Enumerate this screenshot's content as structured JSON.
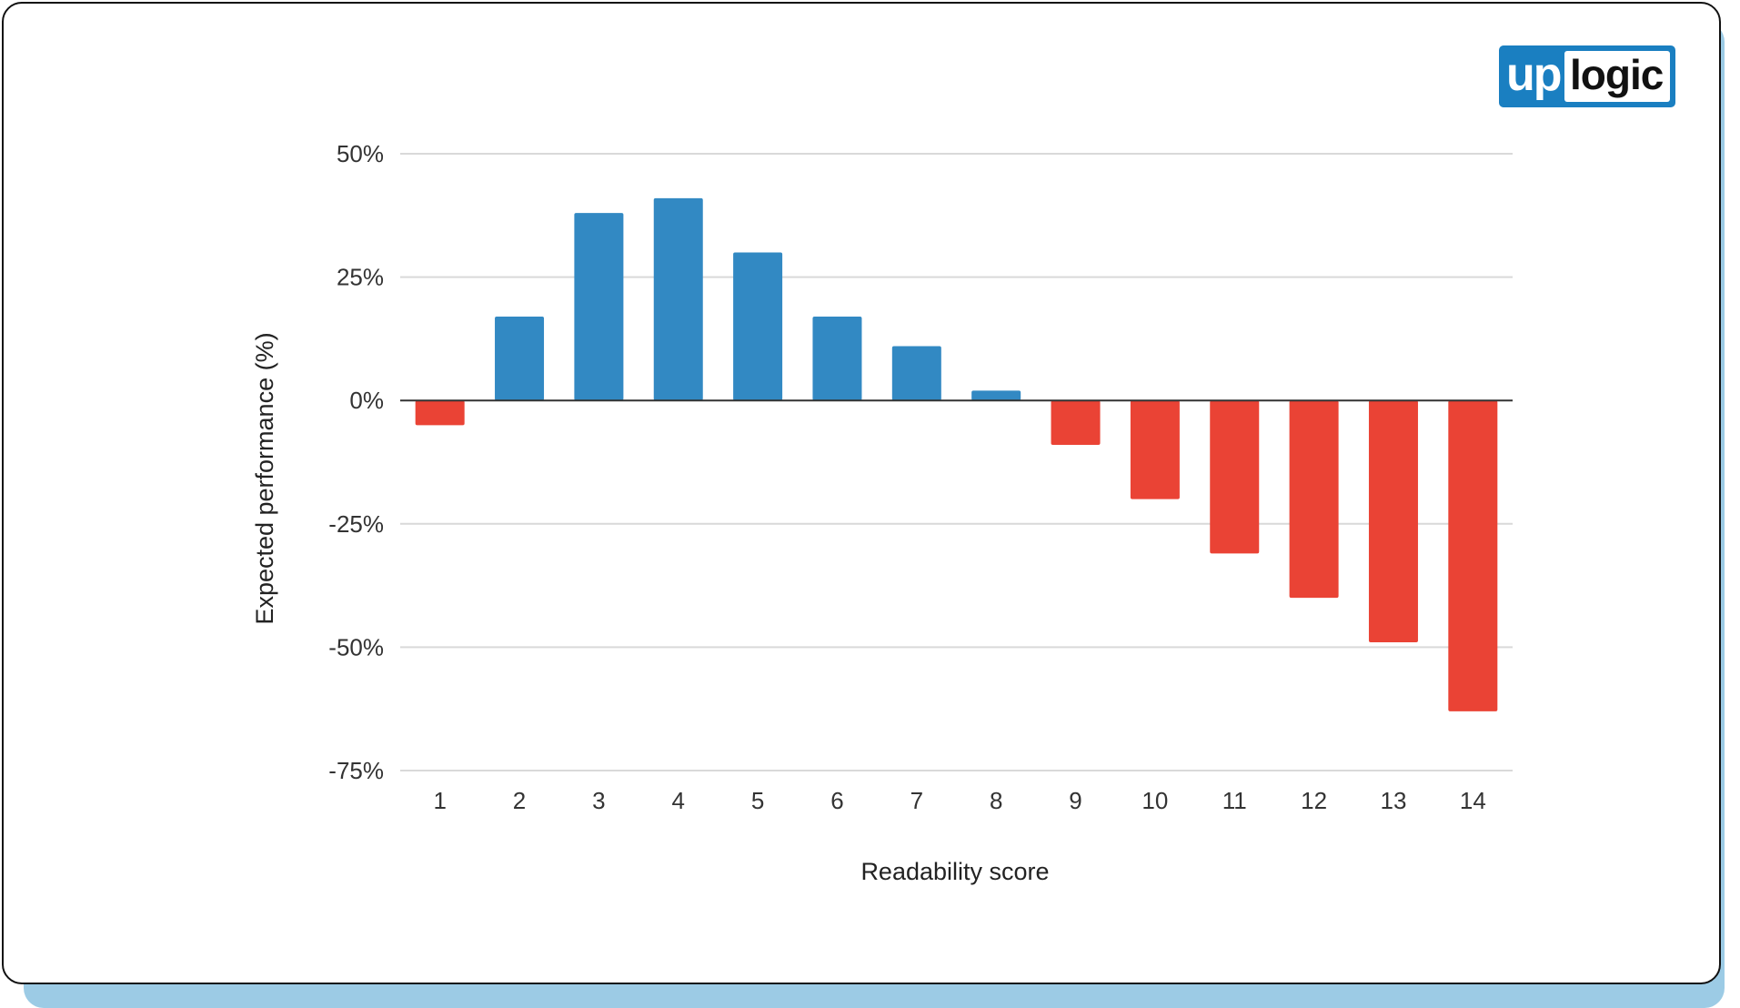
{
  "logo": {
    "part1": "up",
    "part2": "logic"
  },
  "chart_data": {
    "type": "bar",
    "title": "",
    "xlabel": "Readability score",
    "ylabel": "Expected performance (%)",
    "ylim": [
      -75,
      50
    ],
    "yticks": [
      50,
      25,
      0,
      -25,
      -50,
      -75
    ],
    "ytick_labels": [
      "50%",
      "25%",
      "0%",
      "-25%",
      "-50%",
      "-75%"
    ],
    "categories": [
      "1",
      "2",
      "3",
      "4",
      "5",
      "6",
      "7",
      "8",
      "9",
      "10",
      "11",
      "12",
      "13",
      "14"
    ],
    "values": [
      -5,
      17,
      38,
      41,
      30,
      17,
      11,
      2,
      -9,
      -20,
      -31,
      -40,
      -49,
      -63
    ],
    "grid": true,
    "colors": {
      "positive": "#3289c3",
      "negative": "#ea4335",
      "grid": "#d9d9d9",
      "zero_line": "#333333"
    }
  }
}
